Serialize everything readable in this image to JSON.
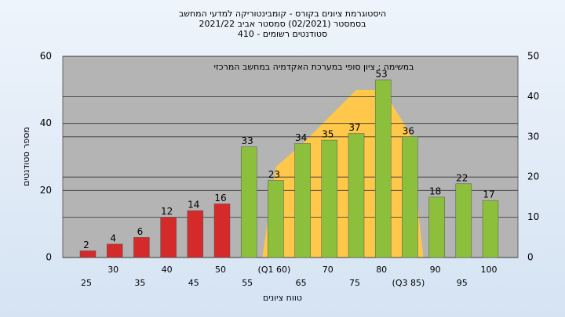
{
  "chart_data": {
    "type": "bar",
    "title": "היסטוגרמת ציונים בקורס - קומבינטוריקה למדעי המחשב",
    "subtitle": [
      "בסמסטר  (02/2021)  סמסטר אביב 2021/22",
      "סטודנטים רשומים - 410"
    ],
    "annotation": "במשימה : ציון סופי במערכת האקדמיה במחשב המרכזי",
    "x_label": "טווח ציונים",
    "y_label": "מספר סטודנטים",
    "categories": [
      "25",
      "30",
      "35",
      "40",
      "45",
      "50",
      "55",
      "(Q1 60)",
      "65",
      "70",
      "75",
      "80",
      "(Q3 85)",
      "90",
      "95",
      "100"
    ],
    "values": [
      2,
      4,
      6,
      12,
      14,
      16,
      33,
      23,
      34,
      35,
      37,
      53,
      36,
      18,
      22,
      17
    ],
    "colors": [
      "#d42a2a",
      "#d42a2a",
      "#d42a2a",
      "#d42a2a",
      "#d42a2a",
      "#d42a2a",
      "#8cbf3c",
      "#8cbf3c",
      "#8cbf3c",
      "#8cbf3c",
      "#8cbf3c",
      "#8cbf3c",
      "#8cbf3c",
      "#8cbf3c",
      "#8cbf3c",
      "#8cbf3c"
    ],
    "area": {
      "color": "#ffc84a",
      "values": [
        null,
        null,
        null,
        null,
        null,
        null,
        null,
        27,
        34,
        42,
        50,
        50,
        37,
        null,
        null,
        null
      ]
    },
    "ylim": [
      0,
      60
    ],
    "yticks": [
      0,
      20,
      40,
      60
    ],
    "y2lim": [
      0,
      50
    ],
    "y2ticks": [
      0,
      10,
      20,
      30,
      40,
      50
    ],
    "grid": true
  }
}
